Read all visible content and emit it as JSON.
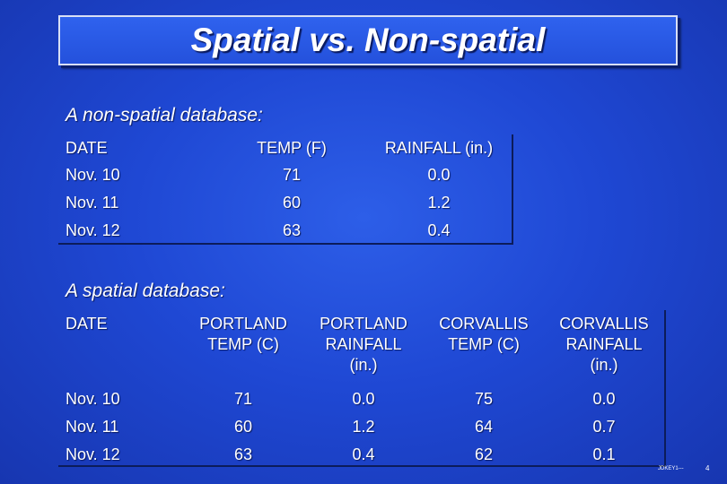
{
  "title": "Spatial vs. Non-spatial",
  "non_spatial": {
    "heading": "A non-spatial database:",
    "headers": [
      "DATE",
      "TEMP (F)",
      "RAINFALL (in.)"
    ],
    "rows": [
      [
        "Nov. 10",
        "71",
        "0.0"
      ],
      [
        "Nov. 11",
        "60",
        "1.2"
      ],
      [
        "Nov. 12",
        "63",
        "0.4"
      ]
    ]
  },
  "spatial": {
    "heading": "A spatial database:",
    "headers": [
      [
        "DATE"
      ],
      [
        "PORTLAND",
        "TEMP (C)"
      ],
      [
        "PORTLAND",
        "RAINFALL",
        "(in.)"
      ],
      [
        "CORVALLIS",
        "TEMP (C)"
      ],
      [
        "CORVALLIS",
        "RAINFALL",
        "(in.)"
      ]
    ],
    "rows": [
      [
        "Nov. 10",
        "71",
        "0.0",
        "75",
        "0.0"
      ],
      [
        "Nov. 11",
        "60",
        "1.2",
        "64",
        "0.7"
      ],
      [
        "Nov. 12",
        "63",
        "0.4",
        "62",
        "0.1"
      ]
    ]
  },
  "footer": {
    "code": "JDKEY1---",
    "page": "4"
  }
}
